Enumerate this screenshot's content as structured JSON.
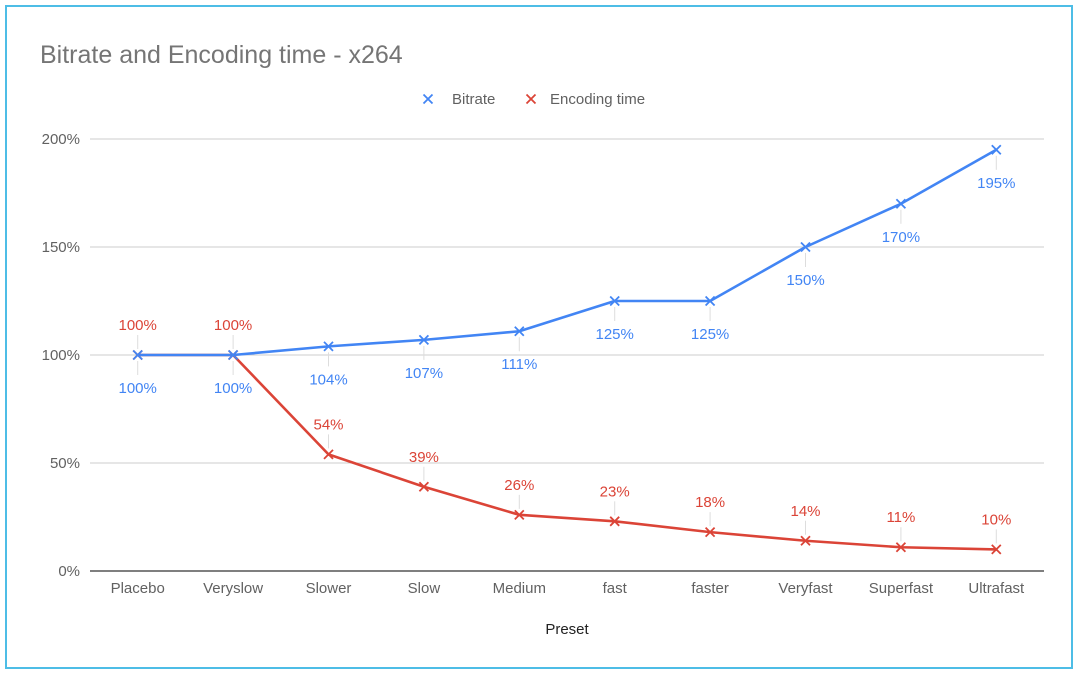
{
  "chart_data": {
    "type": "line",
    "title": "Bitrate and Encoding time - x264",
    "xlabel": "Preset",
    "ylabel": "",
    "categories": [
      "Placebo",
      "Veryslow",
      "Slower",
      "Slow",
      "Medium",
      "fast",
      "faster",
      "Veryfast",
      "Superfast",
      "Ultrafast"
    ],
    "ylim": [
      0,
      200
    ],
    "yticks": [
      0,
      50,
      100,
      150,
      200
    ],
    "ytick_labels": [
      "0%",
      "50%",
      "100%",
      "150%",
      "200%"
    ],
    "grid": true,
    "legend_position": "top",
    "series": [
      {
        "name": "Bitrate",
        "color": "#4285f4",
        "marker": "x",
        "values": [
          100,
          100,
          104,
          107,
          111,
          125,
          125,
          150,
          170,
          195
        ],
        "labels": [
          "100%",
          "100%",
          "104%",
          "107%",
          "111%",
          "125%",
          "125%",
          "150%",
          "170%",
          "195%"
        ],
        "label_position": "below"
      },
      {
        "name": "Encoding time",
        "color": "#db4437",
        "marker": "x",
        "values": [
          100,
          100,
          54,
          39,
          26,
          23,
          18,
          14,
          11,
          10
        ],
        "labels": [
          "100%",
          "100%",
          "54%",
          "39%",
          "26%",
          "23%",
          "18%",
          "14%",
          "11%",
          "10%"
        ],
        "label_position": "above"
      }
    ]
  }
}
